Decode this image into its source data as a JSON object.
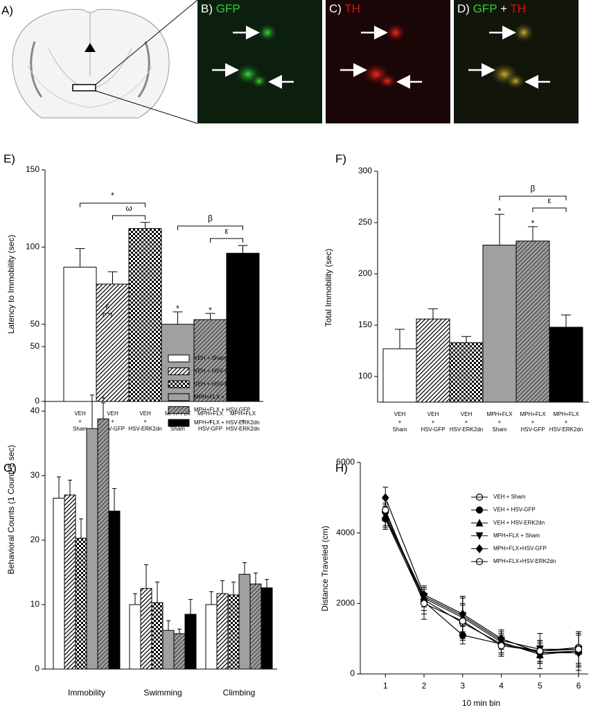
{
  "image_panels": [
    {
      "label": "A)"
    },
    {
      "label": "B)",
      "stain": [
        "GFP"
      ]
    },
    {
      "label": "C)",
      "stain": [
        "TH"
      ]
    },
    {
      "label": "D)",
      "stain": [
        "GFP",
        "+",
        "TH"
      ]
    }
  ],
  "chart_data": [
    {
      "type": "bar",
      "panel_label": "E)",
      "ylabel": "Latency to Immobility (sec)",
      "categories": [
        [
          "VEH",
          "+",
          "Sham"
        ],
        [
          "VEH",
          "+",
          "HSV-GFP"
        ],
        [
          "VEH",
          "+",
          "HSV-ERK2dn"
        ],
        [
          "MPH+FLX",
          "+",
          "Sham"
        ],
        [
          "MPH+FLX",
          "+",
          "HSV-GFP"
        ],
        [
          "MPH+FLX",
          "+",
          "HSV-ERK2dn"
        ]
      ],
      "values": [
        87,
        76,
        112,
        50,
        53,
        96
      ],
      "errors": [
        12,
        8,
        4,
        8,
        4,
        5
      ],
      "fills": [
        "open",
        "hatch",
        "check",
        "gray",
        "gray-hatch",
        "black"
      ],
      "ylim": [
        0,
        150
      ],
      "yticks": [
        0,
        50,
        100,
        150
      ],
      "annotations": [
        "*",
        "ω",
        "β",
        "ε",
        "*",
        "*"
      ]
    },
    {
      "type": "bar",
      "panel_label": "F)",
      "ylabel": "Total Immobility (sec)",
      "categories": [
        [
          "VEH",
          "+",
          "Sham"
        ],
        [
          "VEH",
          "+",
          "HSV-GFP"
        ],
        [
          "VEH",
          "+",
          "HSV-ERK2dn"
        ],
        [
          "MPH+FLX",
          "+",
          "Sham"
        ],
        [
          "MPH+FLX",
          "+",
          "HSV-GFP"
        ],
        [
          "MPH+FLX",
          "+",
          "HSV-ERK2dn"
        ]
      ],
      "values": [
        127,
        156,
        133,
        228,
        232,
        148
      ],
      "errors": [
        19,
        10,
        6,
        30,
        14,
        12
      ],
      "fills": [
        "open",
        "hatch",
        "check",
        "gray",
        "gray-hatch",
        "black"
      ],
      "ylim": [
        75,
        300
      ],
      "yticks": [
        100,
        150,
        200,
        250,
        300
      ],
      "annotations": [
        "β",
        "ε",
        "*",
        "*"
      ]
    },
    {
      "type": "grouped-bar",
      "panel_label": "G)",
      "ylabel": "Behavioral Counts (1 Count/ 5 sec)",
      "categories": [
        "Immobility",
        "Swimming",
        "Climbing"
      ],
      "series": [
        {
          "name": "VEH + Sham",
          "fill": "open",
          "values": [
            26.5,
            10,
            10
          ],
          "errors": [
            3.3,
            1.7,
            2
          ]
        },
        {
          "name": "VEH + HSV-GFP",
          "fill": "hatch",
          "values": [
            27,
            12.5,
            11.7
          ],
          "errors": [
            2.3,
            3.7,
            2
          ]
        },
        {
          "name": "VEH + HSV-ERK2dn",
          "fill": "check",
          "values": [
            20.3,
            10.3,
            11.5
          ],
          "errors": [
            3,
            3.2,
            2
          ]
        },
        {
          "name": "MPH+FLX + Sham",
          "fill": "gray",
          "values": [
            37.3,
            6,
            14.7
          ],
          "errors": [
            5.2,
            1.5,
            1.8
          ]
        },
        {
          "name": "MPH+FLX + HSV-GFP",
          "fill": "gray-hatch",
          "values": [
            38.8,
            5.5,
            13.2
          ],
          "errors": [
            2.5,
            0.7,
            1.7
          ]
        },
        {
          "name": "MPH+FLX + HSV-ERK2dn",
          "fill": "black",
          "values": [
            24.5,
            8.5,
            12.6
          ],
          "errors": [
            3.5,
            2.3,
            1.3
          ]
        }
      ],
      "ylim": [
        0,
        50
      ],
      "yticks": [
        0,
        10,
        20,
        30,
        40,
        50
      ],
      "annotations": [
        "*",
        "ε"
      ]
    },
    {
      "type": "line",
      "panel_label": "H)",
      "ylabel": "Distance Traveled  (cm)",
      "xlabel": "10 min bin",
      "x": [
        1,
        2,
        3,
        4,
        5,
        6
      ],
      "xlim": [
        0.35,
        6.25
      ],
      "xticks": [
        1,
        2,
        3,
        4,
        5,
        6
      ],
      "ylim": [
        0,
        6000
      ],
      "yticks": [
        0,
        2000,
        4000,
        6000
      ],
      "series": [
        {
          "name": "VEH + Sham",
          "marker": "circle-open",
          "values": [
            4600,
            2100,
            1450,
            850,
            650,
            750
          ],
          "errors": [
            250,
            300,
            500,
            250,
            500,
            450
          ]
        },
        {
          "name": "VEH + HSV-GFP",
          "marker": "circle",
          "values": [
            4400,
            2050,
            1100,
            850,
            600,
            650
          ],
          "errors": [
            300,
            350,
            250,
            300,
            300,
            550
          ]
        },
        {
          "name": "VEH + HSV-ERK2dn",
          "marker": "triangle",
          "values": [
            4450,
            2150,
            1600,
            900,
            550,
            650
          ],
          "errors": [
            300,
            250,
            550,
            300,
            250,
            450
          ]
        },
        {
          "name": "MPH+FLX + Sham",
          "marker": "triangle-down",
          "values": [
            4500,
            2200,
            1650,
            950,
            700,
            700
          ],
          "errors": [
            300,
            250,
            550,
            250,
            250,
            450
          ]
        },
        {
          "name": "MPH+FLX+HSV-GFP",
          "marker": "diamond",
          "values": [
            5000,
            2250,
            1700,
            1000,
            600,
            600
          ],
          "errors": [
            300,
            250,
            500,
            250,
            250,
            600
          ]
        },
        {
          "name": "MPH+FLX+HSV-ERK2dn",
          "marker": "circle-open",
          "values": [
            4650,
            2000,
            1500,
            800,
            650,
            700
          ],
          "errors": [
            300,
            450,
            500,
            300,
            300,
            500
          ]
        }
      ]
    }
  ]
}
